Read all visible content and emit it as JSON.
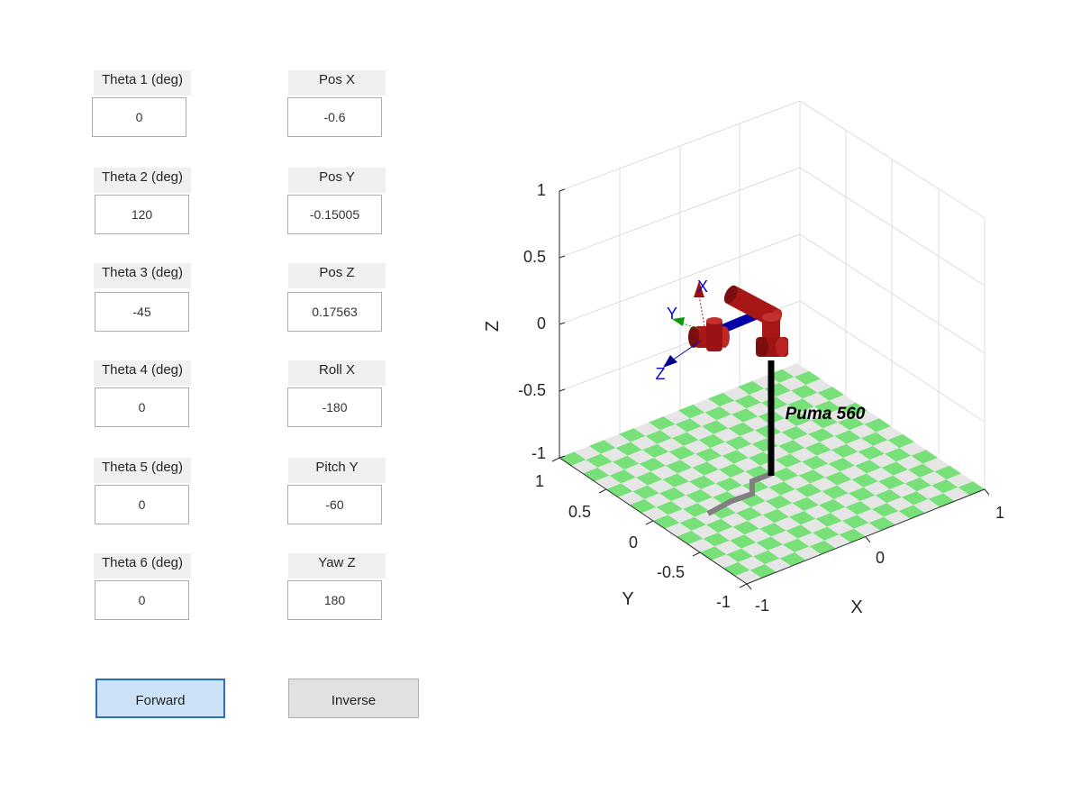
{
  "joints": [
    {
      "label": "Theta 1 (deg)",
      "value": "0"
    },
    {
      "label": "Theta 2 (deg)",
      "value": "120"
    },
    {
      "label": "Theta 3 (deg)",
      "value": "-45"
    },
    {
      "label": "Theta 4 (deg)",
      "value": "0"
    },
    {
      "label": "Theta 5 (deg)",
      "value": "0"
    },
    {
      "label": "Theta 6 (deg)",
      "value": "0"
    }
  ],
  "pose": [
    {
      "label": "Pos X",
      "value": "-0.6"
    },
    {
      "label": "Pos Y",
      "value": "-0.15005"
    },
    {
      "label": "Pos Z",
      "value": "0.17563"
    },
    {
      "label": "Roll X",
      "value": "-180"
    },
    {
      "label": "Pitch Y",
      "value": "-60"
    },
    {
      "label": "Yaw Z",
      "value": "180"
    }
  ],
  "buttons": {
    "forward": "Forward",
    "inverse": "Inverse"
  },
  "plot": {
    "robot_name": "Puma 560",
    "axis_labels": {
      "x": "X",
      "y": "Y",
      "z": "Z"
    },
    "z_ticks": [
      "1",
      "0.5",
      "0",
      "-0.5",
      "-1"
    ],
    "y_ticks": [
      "1",
      "0.5",
      "0",
      "-0.5",
      "-1"
    ],
    "x_ticks": [
      "-1",
      "0",
      "1"
    ],
    "frame_labels": {
      "x": "X",
      "y": "Y",
      "z": "Z"
    },
    "colors": {
      "floor_green": "#78e078",
      "floor_gray": "#e6e6e6",
      "link_red": "#b01818",
      "link_black": "#000000",
      "shadow_gray": "#808080",
      "frame_blue": "#0000cc",
      "frame_green": "#00aa00"
    }
  }
}
